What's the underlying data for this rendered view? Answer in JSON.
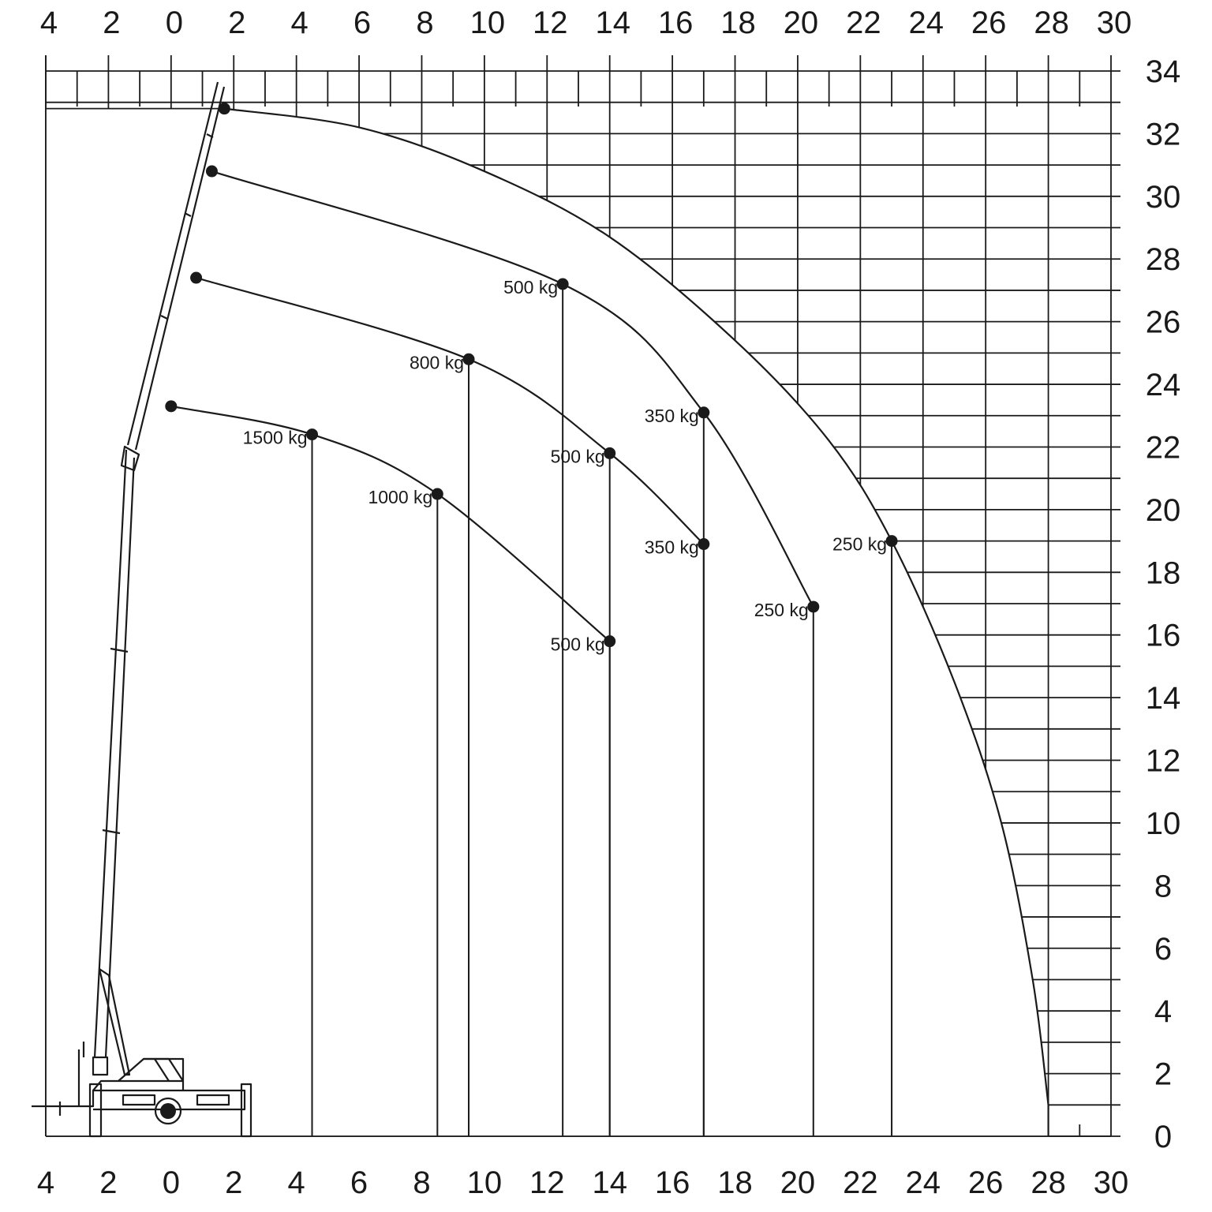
{
  "chart_data": {
    "type": "line",
    "title": "",
    "xlabel": "",
    "ylabel": "",
    "xlim": [
      -4,
      30
    ],
    "ylim": [
      0,
      34
    ],
    "top_ticks": [
      "4",
      "2",
      "0",
      "2",
      "4",
      "6",
      "8",
      "10",
      "12",
      "14",
      "16",
      "18",
      "20",
      "22",
      "24",
      "26",
      "28",
      "30"
    ],
    "bottom_ticks": [
      "4",
      "2",
      "0",
      "2",
      "4",
      "6",
      "8",
      "10",
      "12",
      "14",
      "16",
      "18",
      "20",
      "22",
      "24",
      "26",
      "28",
      "30"
    ],
    "right_ticks": [
      "0",
      "2",
      "4",
      "6",
      "8",
      "10",
      "12",
      "14",
      "16",
      "18",
      "20",
      "22",
      "24",
      "26",
      "28",
      "30",
      "32",
      "34"
    ],
    "grid": true,
    "envelope": [
      {
        "x": 1.7,
        "y": 32.8
      },
      {
        "x": 6,
        "y": 32.2
      },
      {
        "x": 10,
        "y": 30.8
      },
      {
        "x": 14,
        "y": 28.7
      },
      {
        "x": 18,
        "y": 25.4
      },
      {
        "x": 21,
        "y": 22.2
      },
      {
        "x": 23,
        "y": 19.0
      },
      {
        "x": 25,
        "y": 14.5
      },
      {
        "x": 26.5,
        "y": 10.0
      },
      {
        "x": 27.5,
        "y": 5.0
      },
      {
        "x": 28,
        "y": 1.0
      }
    ],
    "series": [
      {
        "points": [
          {
            "x": 0,
            "y": 23.3
          },
          {
            "x": 4.5,
            "y": 22.4
          },
          {
            "x": 8.5,
            "y": 20.5
          },
          {
            "x": 14,
            "y": 15.8
          }
        ],
        "labels": [
          "",
          "1500 kg",
          "1000 kg",
          "500 kg"
        ]
      },
      {
        "points": [
          {
            "x": 0.8,
            "y": 27.4
          },
          {
            "x": 9.5,
            "y": 24.8
          },
          {
            "x": 14,
            "y": 21.8
          },
          {
            "x": 17,
            "y": 18.9
          }
        ],
        "labels": [
          "",
          "800 kg",
          "500 kg",
          "350 kg"
        ]
      },
      {
        "points": [
          {
            "x": 1.3,
            "y": 30.8
          },
          {
            "x": 12.5,
            "y": 27.2
          },
          {
            "x": 17,
            "y": 23.1
          },
          {
            "x": 20.5,
            "y": 16.9
          }
        ],
        "labels": [
          "",
          "500 kg",
          "350 kg",
          "250 kg"
        ]
      },
      {
        "points": [
          {
            "x": 1.7,
            "y": 32.8
          },
          {
            "x": 23,
            "y": 19.0
          }
        ],
        "labels": [
          "",
          "250 kg"
        ]
      }
    ]
  }
}
